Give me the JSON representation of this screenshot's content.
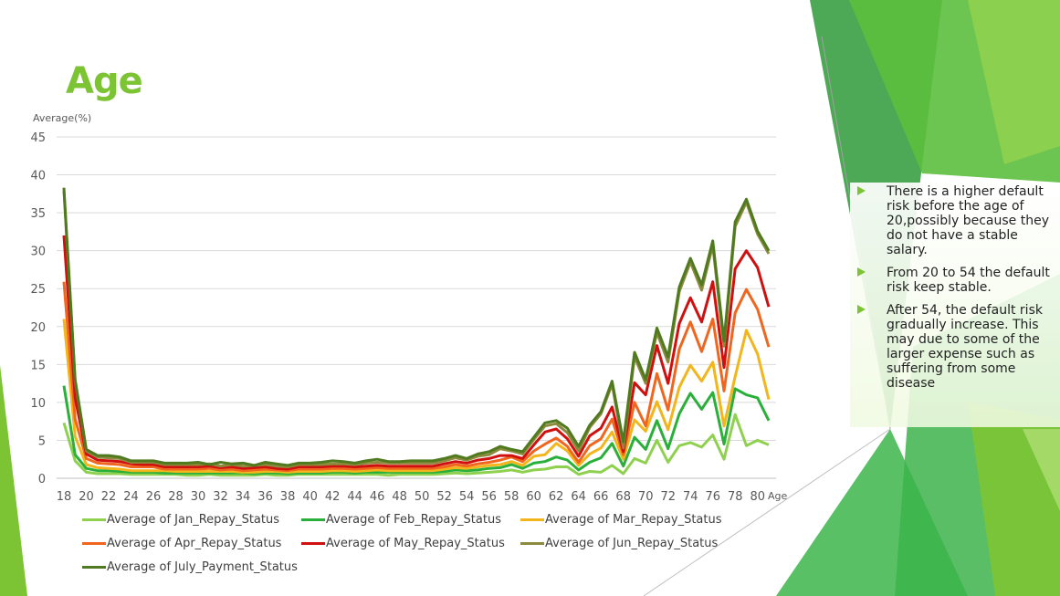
{
  "slide": {
    "title": "Age",
    "notes": [
      "There is a higher default risk before the age of 20,possibly because they do not have a stable salary.",
      "From 20 to 54 the default risk keep stable.",
      "After 54, the default risk gradually increase. This may due to some of the larger expense such as suffering from some disease"
    ],
    "accent": "#7cc434"
  },
  "chart_data": {
    "type": "line",
    "ylabel": "Average(%)",
    "xlabel": "Age",
    "ylim": [
      0,
      45
    ],
    "yticks": [
      0,
      5,
      10,
      15,
      20,
      25,
      30,
      35,
      40,
      45
    ],
    "grid": true,
    "legend_position": "bottom",
    "x": [
      18,
      19,
      20,
      21,
      22,
      23,
      24,
      25,
      26,
      27,
      28,
      29,
      30,
      31,
      32,
      33,
      34,
      35,
      36,
      37,
      38,
      39,
      40,
      41,
      42,
      43,
      44,
      45,
      46,
      47,
      48,
      49,
      50,
      51,
      52,
      53,
      54,
      55,
      56,
      57,
      58,
      59,
      60,
      61,
      62,
      63,
      64,
      65,
      66,
      67,
      68,
      69,
      70,
      71,
      72,
      73,
      74,
      75,
      76,
      77,
      78,
      79,
      80,
      81
    ],
    "xtick_labels": [
      "18",
      "20",
      "22",
      "24",
      "26",
      "28",
      "30",
      "32",
      "34",
      "36",
      "38",
      "40",
      "42",
      "44",
      "46",
      "48",
      "50",
      "52",
      "54",
      "56",
      "58",
      "60",
      "62",
      "64",
      "66",
      "68",
      "70",
      "72",
      "74",
      "76",
      "78",
      "80"
    ],
    "series": [
      {
        "name": "Average of Jan_Repay_Status",
        "color": "#8fd14f",
        "values": [
          7.3,
          2.3,
          0.8,
          0.6,
          0.6,
          0.6,
          0.5,
          0.5,
          0.5,
          0.5,
          0.5,
          0.4,
          0.4,
          0.5,
          0.4,
          0.4,
          0.4,
          0.4,
          0.5,
          0.4,
          0.4,
          0.5,
          0.5,
          0.5,
          0.5,
          0.5,
          0.5,
          0.5,
          0.5,
          0.4,
          0.5,
          0.5,
          0.5,
          0.5,
          0.6,
          0.7,
          0.6,
          0.7,
          0.8,
          0.9,
          1.1,
          0.8,
          1.1,
          1.2,
          1.5,
          1.5,
          0.5,
          0.9,
          0.8,
          1.7,
          0.6,
          2.6,
          2.0,
          5.0,
          2.1,
          4.3,
          4.7,
          4.1,
          5.7,
          2.5,
          8.4,
          4.3,
          5.0,
          4.4
        ]
      },
      {
        "name": "Average of Feb_Repay_Status",
        "color": "#2ab03a",
        "values": [
          12.2,
          3.1,
          1.3,
          1.0,
          1.0,
          0.9,
          0.8,
          0.8,
          0.8,
          0.7,
          0.7,
          0.7,
          0.7,
          0.7,
          0.7,
          0.7,
          0.7,
          0.6,
          0.7,
          0.7,
          0.6,
          0.7,
          0.7,
          0.7,
          0.8,
          0.8,
          0.7,
          0.8,
          0.8,
          0.8,
          0.8,
          0.8,
          0.8,
          0.8,
          0.9,
          1.1,
          1.0,
          1.1,
          1.3,
          1.4,
          1.8,
          1.3,
          2.0,
          2.2,
          2.8,
          2.4,
          1.1,
          2.1,
          2.7,
          4.6,
          1.6,
          5.4,
          3.8,
          7.6,
          3.9,
          8.5,
          11.2,
          9.1,
          11.3,
          4.5,
          11.8,
          11.0,
          10.6,
          7.6
        ]
      },
      {
        "name": "Average of Mar_Repay_Status",
        "color": "#f2b51b",
        "values": [
          21.0,
          5.5,
          1.8,
          1.4,
          1.3,
          1.2,
          1.0,
          1.0,
          1.0,
          1.0,
          0.9,
          0.9,
          0.9,
          0.9,
          0.9,
          0.9,
          0.8,
          0.8,
          0.9,
          0.9,
          0.8,
          0.9,
          0.9,
          0.9,
          1.0,
          1.0,
          0.9,
          1.0,
          1.1,
          1.0,
          1.0,
          1.0,
          1.0,
          1.0,
          1.2,
          1.4,
          1.3,
          1.5,
          1.7,
          1.8,
          2.2,
          1.7,
          2.9,
          3.1,
          4.6,
          3.6,
          1.7,
          3.2,
          4.0,
          6.1,
          2.5,
          7.7,
          6.2,
          10.1,
          6.4,
          12.0,
          14.9,
          12.8,
          15.3,
          6.9,
          13.4,
          19.5,
          16.4,
          10.4
        ]
      },
      {
        "name": "Average of Apr_Repay_Status",
        "color": "#f0661f",
        "values": [
          25.9,
          7.8,
          2.6,
          2.0,
          1.9,
          1.8,
          1.5,
          1.5,
          1.5,
          1.2,
          1.2,
          1.2,
          1.2,
          1.3,
          1.1,
          1.2,
          1.0,
          1.1,
          1.2,
          1.1,
          1.0,
          1.2,
          1.2,
          1.2,
          1.3,
          1.3,
          1.2,
          1.3,
          1.4,
          1.3,
          1.3,
          1.3,
          1.3,
          1.3,
          1.5,
          1.8,
          1.6,
          1.9,
          2.1,
          2.4,
          2.8,
          2.2,
          3.6,
          4.5,
          5.3,
          4.2,
          2.1,
          4.3,
          5.2,
          7.8,
          3.1,
          10.0,
          6.9,
          13.8,
          9.0,
          17.0,
          20.6,
          16.7,
          21.0,
          11.5,
          21.8,
          24.9,
          22.3,
          17.3
        ]
      },
      {
        "name": "Average of May_Repay_Status",
        "color": "#d00f0f",
        "values": [
          32.0,
          10.6,
          3.2,
          2.4,
          2.3,
          2.2,
          1.9,
          1.8,
          1.8,
          1.5,
          1.5,
          1.5,
          1.5,
          1.6,
          1.4,
          1.5,
          1.3,
          1.4,
          1.5,
          1.3,
          1.2,
          1.5,
          1.5,
          1.5,
          1.6,
          1.6,
          1.5,
          1.6,
          1.7,
          1.6,
          1.6,
          1.6,
          1.6,
          1.6,
          1.9,
          2.2,
          2.0,
          2.4,
          2.6,
          3.0,
          3.0,
          2.6,
          4.4,
          6.1,
          6.5,
          5.2,
          2.9,
          5.6,
          6.6,
          9.4,
          3.5,
          12.6,
          11.0,
          17.5,
          12.5,
          20.4,
          23.8,
          20.6,
          25.9,
          14.6,
          27.6,
          30.0,
          27.8,
          22.6
        ]
      },
      {
        "name": "Average of Jun_Repay_Status",
        "color": "#8c8a3c",
        "values": [
          37.9,
          12.8,
          3.6,
          2.8,
          2.7,
          2.6,
          2.1,
          2.1,
          2.1,
          1.8,
          1.8,
          1.8,
          1.8,
          1.9,
          1.6,
          1.8,
          1.6,
          1.7,
          1.8,
          1.6,
          1.5,
          1.8,
          1.8,
          1.8,
          1.9,
          1.9,
          1.8,
          2.0,
          2.1,
          2.0,
          2.0,
          2.0,
          2.0,
          2.0,
          2.3,
          2.7,
          2.4,
          2.9,
          3.1,
          3.9,
          3.6,
          3.2,
          5.1,
          6.9,
          7.2,
          6.0,
          3.6,
          6.7,
          8.5,
          12.4,
          4.0,
          16.0,
          12.5,
          19.2,
          15.3,
          24.6,
          28.5,
          24.8,
          30.7,
          17.4,
          33.2,
          36.4,
          32.2,
          29.6
        ]
      },
      {
        "name": "Average of July_Payment_Status",
        "color": "#4f7a1f",
        "values": [
          38.3,
          13.0,
          3.8,
          3.0,
          3.0,
          2.8,
          2.3,
          2.3,
          2.3,
          2.0,
          2.0,
          2.0,
          2.1,
          1.8,
          2.1,
          1.9,
          2.0,
          1.7,
          2.1,
          1.9,
          1.7,
          2.0,
          2.0,
          2.1,
          2.3,
          2.2,
          2.0,
          2.3,
          2.5,
          2.2,
          2.2,
          2.3,
          2.3,
          2.3,
          2.6,
          3.0,
          2.6,
          3.2,
          3.5,
          4.2,
          3.8,
          3.5,
          5.4,
          7.3,
          7.6,
          6.6,
          4.2,
          7.0,
          8.8,
          12.8,
          4.8,
          16.6,
          13.0,
          19.8,
          16.0,
          25.2,
          29.0,
          25.5,
          31.3,
          18.1,
          33.8,
          36.8,
          32.6,
          30.0
        ]
      }
    ]
  }
}
